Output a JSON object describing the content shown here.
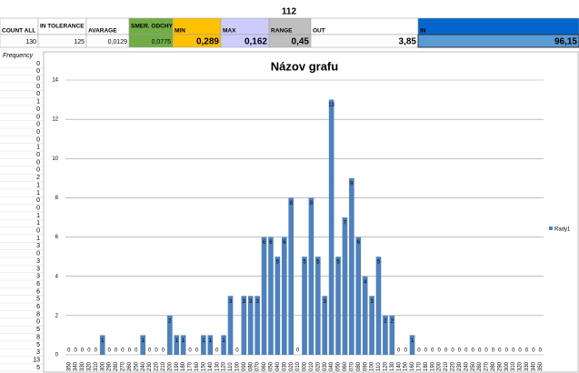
{
  "header": {
    "title": "112"
  },
  "summary": {
    "labels": [
      "COUNT ALL",
      "IN TOLERANCE",
      "AVARAGE",
      "SMER. ODCHYLKA",
      "MIN",
      "MAX",
      "RANGE",
      "OUT",
      "IN"
    ],
    "values": [
      "130",
      "125",
      "0,0129",
      "0,0775",
      "0,289",
      "0,162",
      "0,45",
      "3,85",
      "96,15"
    ]
  },
  "frequency_label": "Frequency",
  "chart_data": {
    "type": "bar",
    "title": "Názov grafu",
    "categories": [
      "350",
      "340",
      "330",
      "320",
      "310",
      "300",
      "290",
      "280",
      "270",
      "260",
      "250",
      "240",
      "230",
      "220",
      "210",
      "200",
      "190",
      "180",
      "170",
      "160",
      "150",
      "140",
      "130",
      "120",
      "110",
      "100",
      "090",
      "080",
      "070",
      "060",
      "050",
      "040",
      "030",
      "020",
      "010",
      "000",
      "010",
      "020",
      "030",
      "040",
      "050",
      "060",
      "070",
      "080",
      "090",
      "100",
      "110",
      "120",
      "130",
      "140",
      "150",
      "160",
      "170",
      "180",
      "190",
      "200",
      "210",
      "220",
      "230",
      "240",
      "250",
      "260",
      "270",
      "280",
      "290",
      "300",
      "310",
      "320",
      "330",
      "340",
      "350"
    ],
    "series": [
      {
        "name": "Rady1",
        "color": "#4f81bd",
        "values": [
          0,
          0,
          0,
          0,
          0,
          1,
          0,
          0,
          0,
          0,
          0,
          1,
          0,
          0,
          0,
          2,
          1,
          1,
          0,
          0,
          1,
          1,
          0,
          1,
          3,
          0,
          3,
          3,
          3,
          6,
          6,
          5,
          6,
          8,
          0,
          5,
          8,
          5,
          3,
          13,
          5,
          7,
          9,
          6,
          4,
          3,
          5,
          2,
          2,
          0,
          0,
          1,
          0,
          0,
          0,
          0,
          0,
          0,
          0,
          0,
          0,
          0,
          0,
          0,
          0,
          0,
          0,
          0,
          0,
          0,
          0
        ]
      }
    ],
    "ylim": [
      0,
      14
    ],
    "yticks": [
      0,
      2,
      4,
      6,
      8,
      10,
      12,
      14
    ],
    "grid": true,
    "legend": "right"
  }
}
